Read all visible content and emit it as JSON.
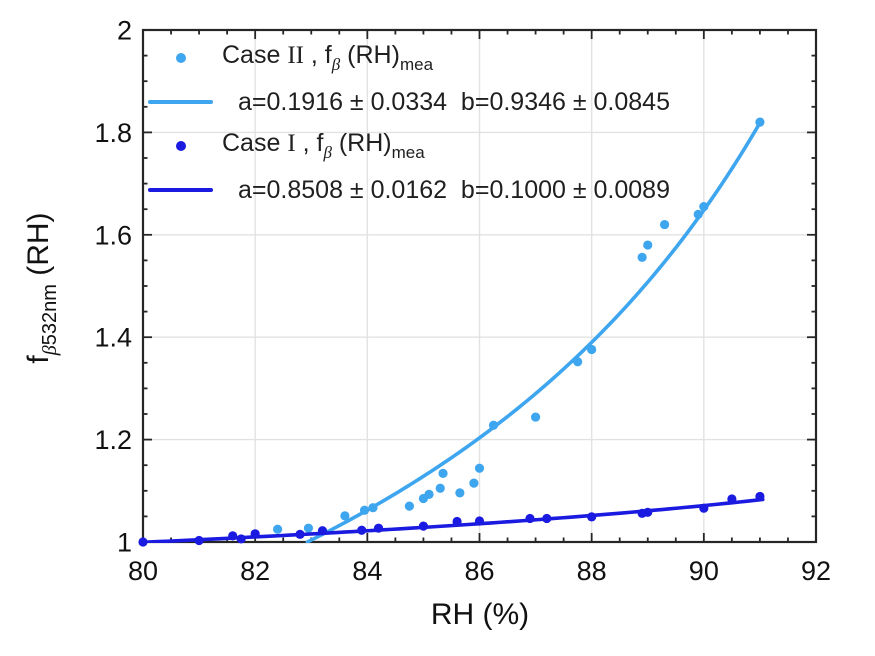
{
  "figure": {
    "xlabel": "RH (%)",
    "ylabel": {
      "prefix": "f",
      "beta": "β",
      "sub_rest": "532nm",
      "suffix": " (RH)"
    },
    "legend": {
      "case2": {
        "word": "Case ",
        "roman": "II",
        "rest": " , f",
        "beta": "β",
        "mid": " (RH)",
        "sub": "mea"
      },
      "fit2": "a=0.1916 ± 0.0334  b=0.9346 ± 0.0845",
      "case1": {
        "word": "Case ",
        "roman": "I",
        "rest": " , f",
        "beta": "β",
        "mid": " (RH)",
        "sub": "mea"
      },
      "fit1": "a=0.8508 ± 0.0162  b=0.1000 ± 0.0089"
    }
  },
  "colors": {
    "case2": "#3ea5ef",
    "case1": "#1a1ae0",
    "grid": "#e2e2e2",
    "axis": "#262626",
    "text": "#111111"
  },
  "chart_data": {
    "type": "scatter",
    "title": "",
    "xlabel": "RH (%)",
    "ylabel": "f_beta532nm (RH)",
    "xlim": [
      80,
      92
    ],
    "ylim": [
      1,
      2
    ],
    "xticks": [
      80,
      82,
      84,
      86,
      88,
      90,
      92
    ],
    "yticks": [
      1,
      1.2,
      1.4,
      1.6,
      1.8,
      2
    ],
    "x_minor_step": 0.5,
    "y_minor_step": 0.05,
    "grid": true,
    "legend_position": "top-left",
    "fit_model": "f(RH) = a*(1-RH/100)^(-b)",
    "series": [
      {
        "name": "Case II, f_beta(RH)_mea",
        "kind": "scatter",
        "color_key": "case2",
        "points": [
          [
            82.4,
            1.025
          ],
          [
            82.95,
            1.027
          ],
          [
            83.6,
            1.051
          ],
          [
            83.95,
            1.062
          ],
          [
            84.1,
            1.067
          ],
          [
            84.75,
            1.07
          ],
          [
            85.0,
            1.085
          ],
          [
            85.1,
            1.093
          ],
          [
            85.3,
            1.105
          ],
          [
            85.35,
            1.134
          ],
          [
            85.65,
            1.096
          ],
          [
            85.9,
            1.115
          ],
          [
            86.0,
            1.144
          ],
          [
            86.25,
            1.228
          ],
          [
            87.0,
            1.244
          ],
          [
            87.75,
            1.352
          ],
          [
            88.0,
            1.376
          ],
          [
            88.9,
            1.556
          ],
          [
            89.0,
            1.58
          ],
          [
            89.3,
            1.62
          ],
          [
            89.9,
            1.64
          ],
          [
            90.0,
            1.655
          ],
          [
            91.0,
            1.82
          ]
        ]
      },
      {
        "name": "Case II fit: a=0.1916±0.0334 b=0.9346±0.0845",
        "kind": "fit",
        "color_key": "case2",
        "a": 0.1916,
        "a_err": 0.0334,
        "b": 0.9346,
        "b_err": 0.0845,
        "rh_range": [
          82.93,
          91.03
        ]
      },
      {
        "name": "Case I, f_beta(RH)_mea",
        "kind": "scatter",
        "color_key": "case1",
        "points": [
          [
            80.0,
            1.0
          ],
          [
            81.0,
            1.003
          ],
          [
            81.6,
            1.012
          ],
          [
            81.75,
            1.006
          ],
          [
            82.0,
            1.016
          ],
          [
            82.8,
            1.015
          ],
          [
            83.2,
            1.022
          ],
          [
            83.9,
            1.023
          ],
          [
            84.2,
            1.027
          ],
          [
            85.0,
            1.031
          ],
          [
            85.6,
            1.04
          ],
          [
            86.0,
            1.041
          ],
          [
            86.9,
            1.046
          ],
          [
            87.2,
            1.046
          ],
          [
            88.0,
            1.049
          ],
          [
            88.9,
            1.056
          ],
          [
            89.0,
            1.058
          ],
          [
            90.0,
            1.066
          ],
          [
            90.5,
            1.084
          ],
          [
            91.0,
            1.089
          ]
        ]
      },
      {
        "name": "Case I fit: a=0.8508±0.0162 b=0.1000±0.0089",
        "kind": "fit",
        "color_key": "case1",
        "a": 0.8508,
        "a_err": 0.0162,
        "b": 0.1,
        "b_err": 0.0089,
        "rh_range": [
          80.0,
          91.05
        ]
      }
    ]
  }
}
